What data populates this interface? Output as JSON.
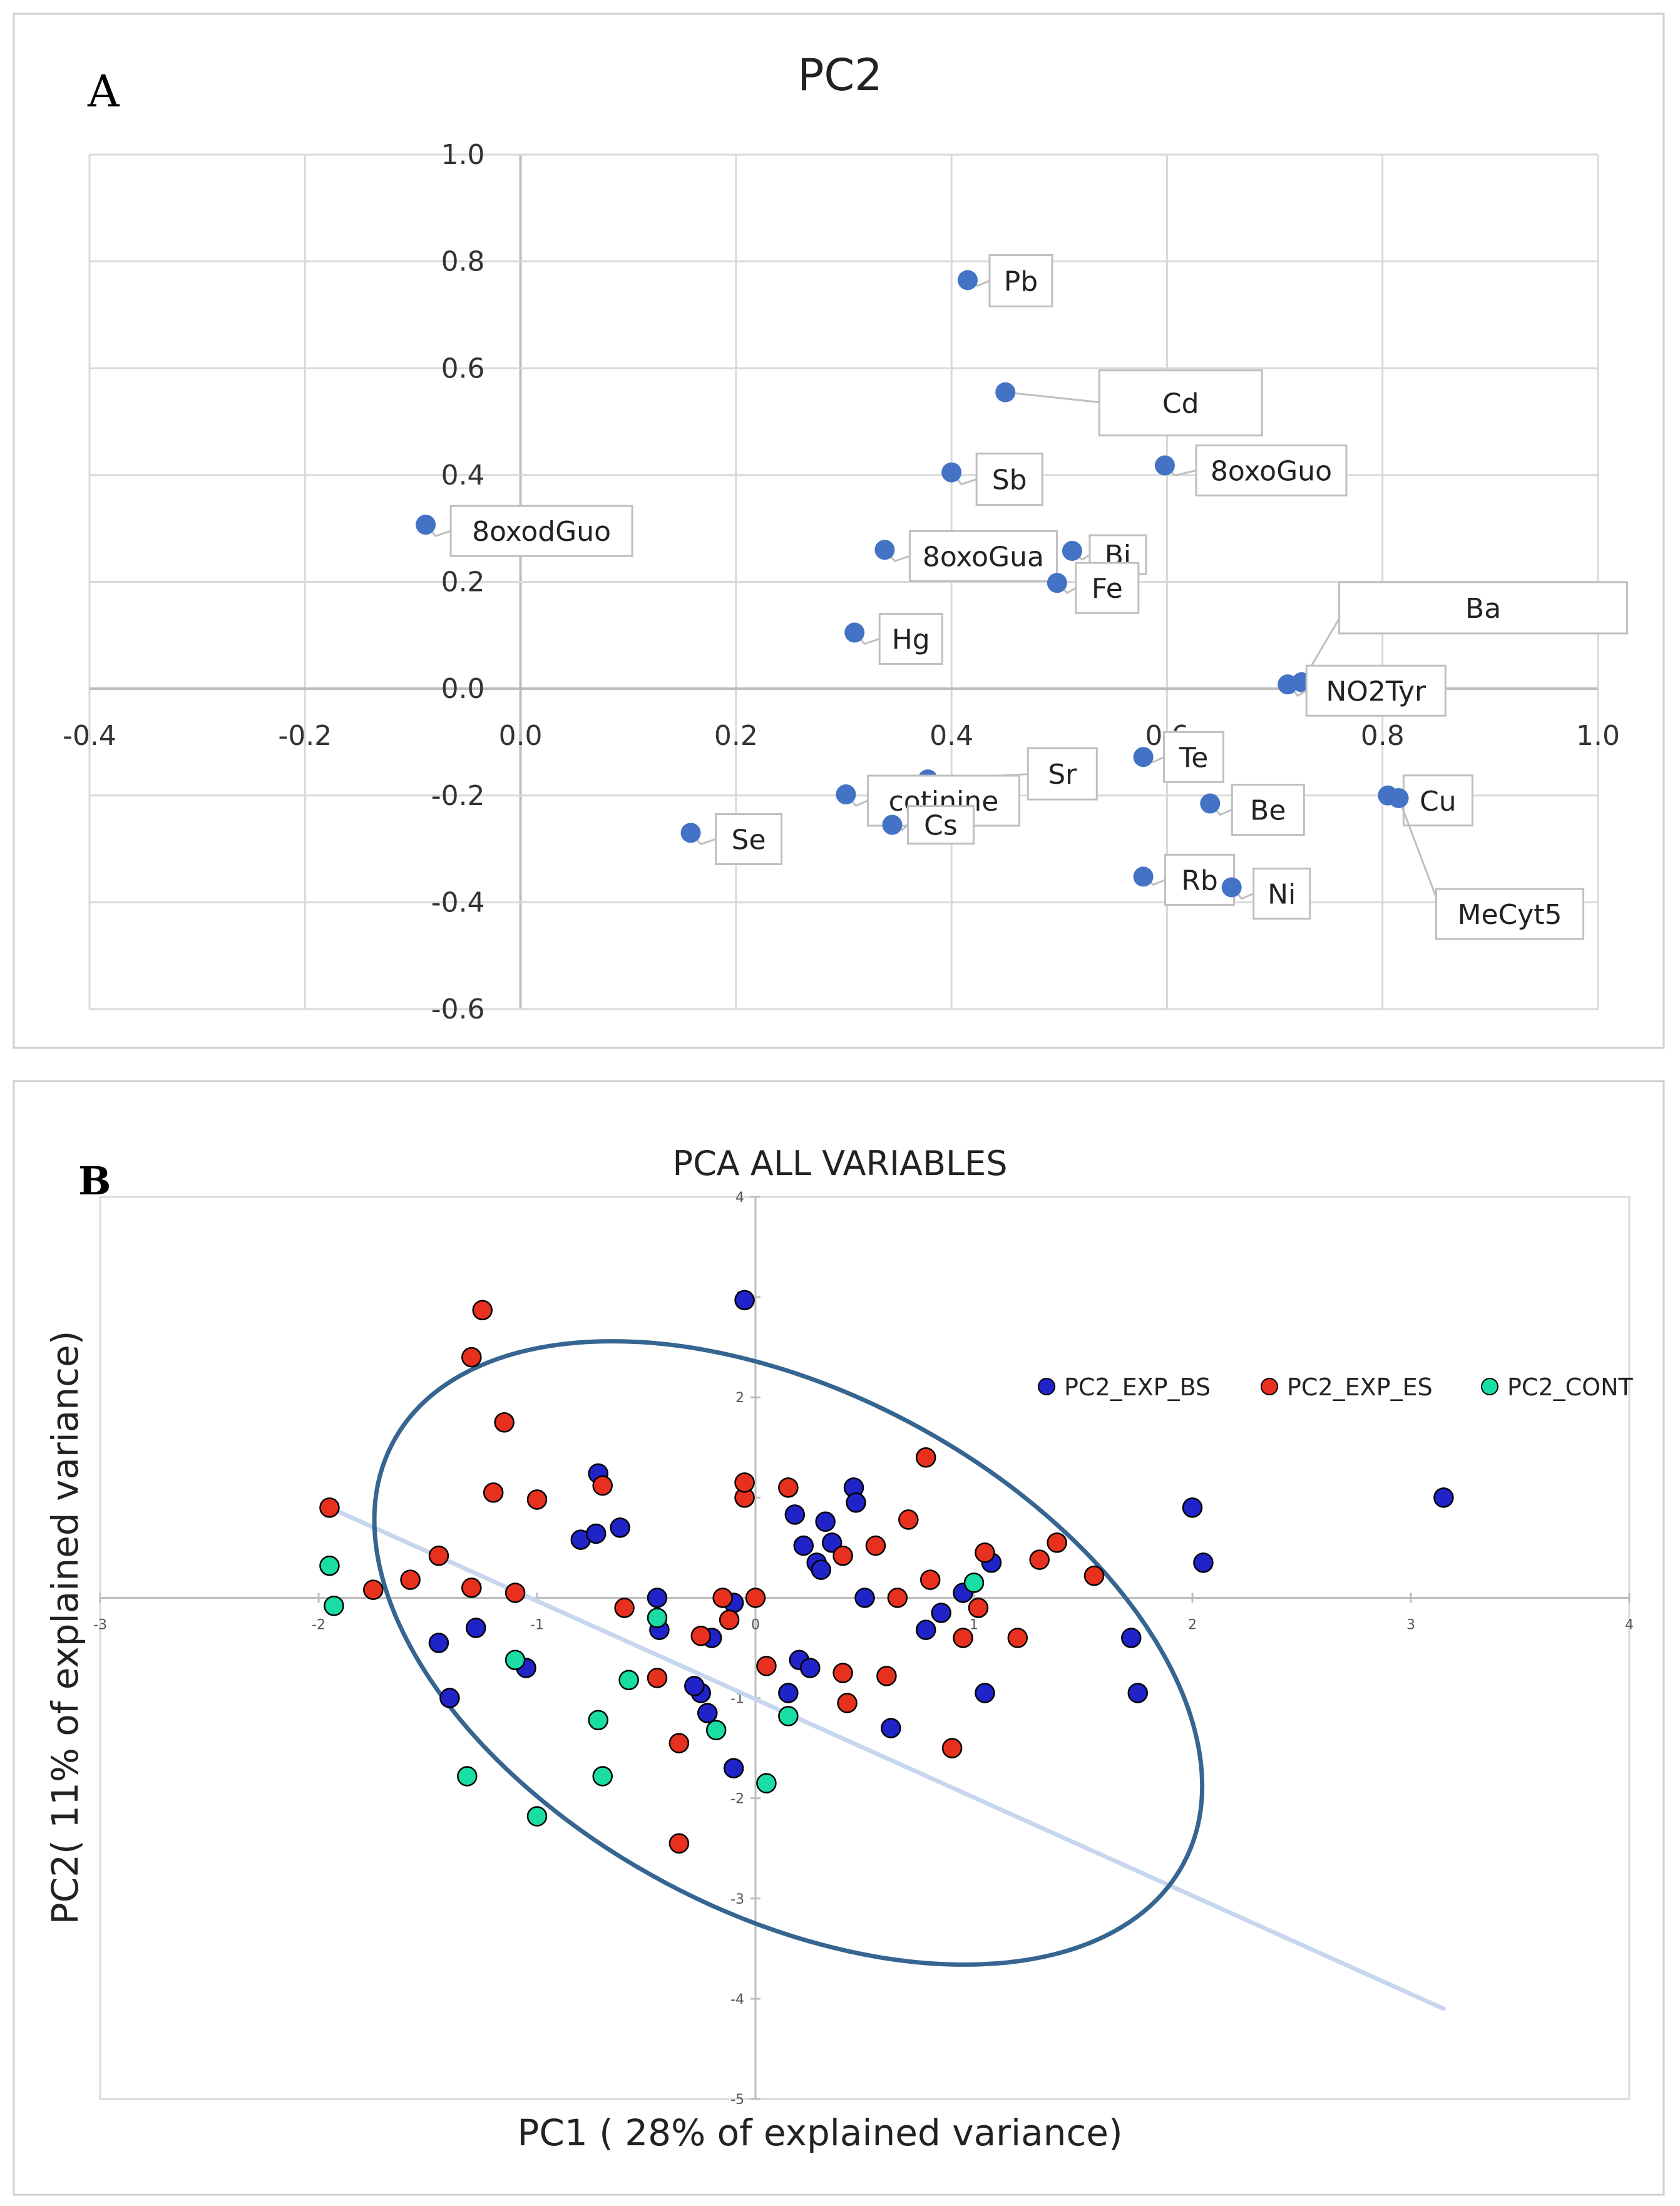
{
  "chart_data": [
    {
      "panel": "A",
      "type": "scatter",
      "title": "PC2",
      "xlabel": "",
      "ylabel": "",
      "xlim": [
        -0.4,
        1.0
      ],
      "ylim": [
        -0.6,
        1.0
      ],
      "x_ticks": [
        -0.4,
        -0.2,
        0.0,
        0.2,
        0.4,
        0.6,
        0.8,
        1.0
      ],
      "x_tick_labels": [
        "-0.4",
        "-0.2",
        "0.0",
        "0.2",
        "0.4",
        "0.6",
        "0.8",
        "1.0"
      ],
      "y_ticks": [
        -0.6,
        -0.4,
        -0.2,
        0.0,
        0.2,
        0.4,
        0.6,
        0.8,
        1.0
      ],
      "y_tick_labels": [
        "-0.6",
        "-0.4",
        "-0.2",
        "0.0",
        "0.2",
        "0.4",
        "0.6",
        "0.8",
        "1.0"
      ],
      "grid": true,
      "point_color": "#4472c4",
      "points": [
        {
          "label": "Pb",
          "x": 0.415,
          "y": 0.765
        },
        {
          "label": "Cd",
          "x": 0.45,
          "y": 0.555
        },
        {
          "label": "Sb",
          "x": 0.4,
          "y": 0.405
        },
        {
          "label": "8oxoGuo",
          "x": 0.598,
          "y": 0.418
        },
        {
          "label": "8oxodGuo",
          "x": -0.088,
          "y": 0.307
        },
        {
          "label": "8oxoGua",
          "x": 0.338,
          "y": 0.26
        },
        {
          "label": "Bi",
          "x": 0.512,
          "y": 0.258
        },
        {
          "label": "Fe",
          "x": 0.498,
          "y": 0.198
        },
        {
          "label": "Hg",
          "x": 0.31,
          "y": 0.105
        },
        {
          "label": "Ba",
          "x": 0.725,
          "y": 0.012
        },
        {
          "label": "NO2Tyr",
          "x": 0.712,
          "y": 0.008
        },
        {
          "label": "Te",
          "x": 0.578,
          "y": -0.128
        },
        {
          "label": "Sr",
          "x": 0.378,
          "y": -0.17
        },
        {
          "label": "cotinine",
          "x": 0.302,
          "y": -0.198
        },
        {
          "label": "Be",
          "x": 0.64,
          "y": -0.215
        },
        {
          "label": "Cu",
          "x": 0.805,
          "y": -0.2
        },
        {
          "label": "Cs",
          "x": 0.345,
          "y": -0.255
        },
        {
          "label": "Se",
          "x": 0.158,
          "y": -0.27
        },
        {
          "label": "Rb",
          "x": 0.578,
          "y": -0.352
        },
        {
          "label": "Ni",
          "x": 0.66,
          "y": -0.372
        },
        {
          "label": "MeCyt5",
          "x": 0.815,
          "y": -0.205
        }
      ]
    },
    {
      "panel": "B",
      "type": "scatter",
      "title": "PCA ALL VARIABLES",
      "xlabel": "PC1 ( 28% of explained variance)",
      "ylabel": "PC2( 11%  of explained variance)",
      "xlim": [
        -3,
        4
      ],
      "ylim": [
        -5,
        4
      ],
      "x_ticks": [
        -3,
        -2,
        -1,
        0,
        1,
        2,
        3,
        4
      ],
      "x_tick_labels": [
        "-3",
        "-2",
        "-1",
        "0",
        "1",
        "2",
        "3",
        "4"
      ],
      "y_ticks": [
        -5,
        -4,
        -3,
        -2,
        -1,
        1,
        2,
        3,
        4
      ],
      "y_tick_labels": [
        "-5",
        "-4",
        "-3",
        "-2",
        "-1",
        "1",
        "2",
        "3",
        "4"
      ],
      "legend_position": "top-right",
      "series": [
        {
          "name": "PC2_EXP_BS",
          "color": "#1f23c8",
          "points": [
            [
              -0.05,
              2.97
            ],
            [
              -1.45,
              -0.45
            ],
            [
              -1.4,
              -1.0
            ],
            [
              -1.28,
              -0.3
            ],
            [
              -1.05,
              -0.7
            ],
            [
              -0.8,
              0.58
            ],
            [
              -0.73,
              0.64
            ],
            [
              -0.72,
              1.24
            ],
            [
              -0.62,
              0.7
            ],
            [
              -0.45,
              0.0
            ],
            [
              -0.44,
              -0.32
            ],
            [
              -0.25,
              -0.95
            ],
            [
              -0.2,
              -0.4
            ],
            [
              -0.1,
              -1.7
            ],
            [
              -0.1,
              -0.05
            ],
            [
              0.15,
              -0.95
            ],
            [
              0.18,
              0.83
            ],
            [
              0.2,
              -0.62
            ],
            [
              0.22,
              0.52
            ],
            [
              0.25,
              -0.7
            ],
            [
              0.28,
              0.35
            ],
            [
              0.3,
              0.28
            ],
            [
              0.32,
              0.76
            ],
            [
              0.35,
              0.55
            ],
            [
              0.45,
              1.1
            ],
            [
              0.46,
              0.95
            ],
            [
              0.5,
              0.0
            ],
            [
              0.62,
              -1.3
            ],
            [
              0.78,
              -0.32
            ],
            [
              0.85,
              -0.15
            ],
            [
              0.95,
              0.05
            ],
            [
              1.05,
              -0.95
            ],
            [
              1.08,
              0.35
            ],
            [
              1.72,
              -0.4
            ],
            [
              1.75,
              -0.95
            ],
            [
              2.0,
              0.9
            ],
            [
              2.05,
              0.35
            ],
            [
              3.15,
              1.0
            ],
            [
              -0.28,
              -0.88
            ],
            [
              -0.22,
              -1.15
            ]
          ]
        },
        {
          "name": "PC2_EXP_ES",
          "color": "#e8301e",
          "points": [
            [
              -1.3,
              2.4
            ],
            [
              -1.25,
              2.87
            ],
            [
              -1.2,
              1.05
            ],
            [
              -1.15,
              1.75
            ],
            [
              -1.1,
              0.05
            ],
            [
              -1.0,
              0.98
            ],
            [
              -1.58,
              0.18
            ],
            [
              -1.45,
              0.42
            ],
            [
              -1.3,
              0.1
            ],
            [
              -1.95,
              0.9
            ],
            [
              -1.75,
              0.08
            ],
            [
              -0.6,
              -0.1
            ],
            [
              -0.7,
              1.12
            ],
            [
              -0.25,
              -0.38
            ],
            [
              -0.35,
              -1.45
            ],
            [
              -0.35,
              -2.45
            ],
            [
              -0.15,
              0.0
            ],
            [
              -0.12,
              -0.22
            ],
            [
              -0.05,
              1.0
            ],
            [
              -0.05,
              1.15
            ],
            [
              0.0,
              0.0
            ],
            [
              0.05,
              -0.68
            ],
            [
              0.15,
              1.1
            ],
            [
              0.4,
              0.42
            ],
            [
              0.4,
              -0.75
            ],
            [
              0.42,
              -1.05
            ],
            [
              0.55,
              0.52
            ],
            [
              0.6,
              -0.78
            ],
            [
              0.65,
              0.0
            ],
            [
              0.7,
              0.78
            ],
            [
              0.78,
              1.4
            ],
            [
              0.8,
              0.18
            ],
            [
              0.9,
              -1.5
            ],
            [
              0.95,
              -0.4
            ],
            [
              1.02,
              -0.1
            ],
            [
              1.05,
              0.45
            ],
            [
              1.2,
              -0.4
            ],
            [
              1.3,
              0.38
            ],
            [
              1.38,
              0.55
            ],
            [
              1.55,
              0.22
            ],
            [
              -0.45,
              -0.8
            ]
          ]
        },
        {
          "name": "PC2_CONT",
          "color": "#19dda3",
          "points": [
            [
              -1.95,
              0.32
            ],
            [
              -1.93,
              -0.08
            ],
            [
              -1.32,
              -1.78
            ],
            [
              -1.1,
              -0.62
            ],
            [
              -1.0,
              -2.18
            ],
            [
              -0.72,
              -1.22
            ],
            [
              -0.7,
              -1.78
            ],
            [
              -0.58,
              -0.82
            ],
            [
              -0.45,
              -0.2
            ],
            [
              -0.18,
              -1.32
            ],
            [
              0.05,
              -1.85
            ],
            [
              0.15,
              -1.18
            ],
            [
              1.0,
              0.15
            ]
          ]
        }
      ],
      "annotations": {
        "ellipse": "95% confidence ellipse",
        "trend_line": "light blue line from (-1.95,0.9) to (3.15,-4.1)"
      }
    }
  ],
  "panel_a": {
    "letter": "A",
    "title": "PC2"
  },
  "panel_b": {
    "letter": "B",
    "title": "PCA ALL VARIABLES",
    "xlabel": "PC1 ( 28% of explained variance)",
    "ylabel": "PC2( 11%  of explained variance)",
    "legend": [
      "PC2_EXP_BS",
      "PC2_EXP_ES",
      "PC2_CONT"
    ]
  }
}
